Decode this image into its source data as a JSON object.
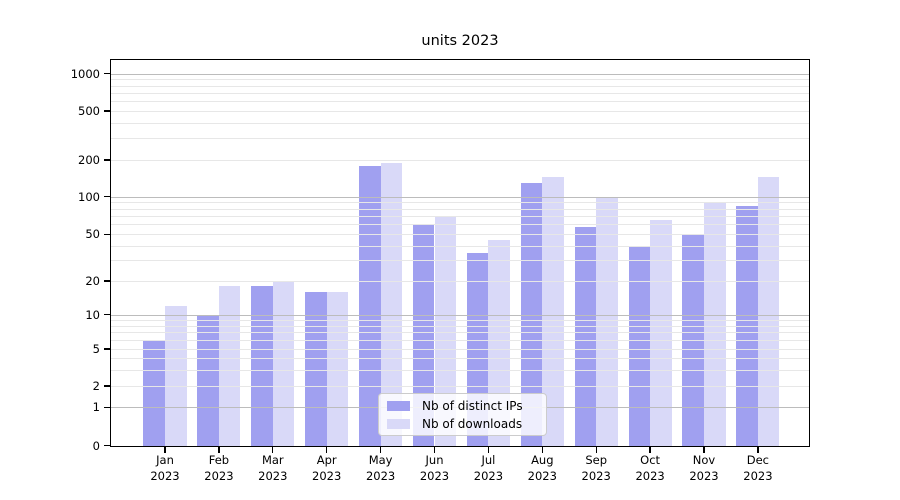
{
  "title": "units 2023",
  "legend": {
    "items": [
      {
        "label": "Nb of distinct IPs",
        "color": "#a0a0f0"
      },
      {
        "label": "Nb of downloads",
        "color": "#d9d9f8"
      }
    ]
  },
  "chart_data": {
    "type": "bar",
    "title": "units 2023",
    "categories": [
      "Jan",
      "Feb",
      "Mar",
      "Apr",
      "May",
      "Jun",
      "Jul",
      "Aug",
      "Sep",
      "Oct",
      "Nov",
      "Dec"
    ],
    "category_year": "2023",
    "series": [
      {
        "name": "Nb of distinct IPs",
        "color": "#a0a0f0",
        "values": [
          6,
          10,
          18,
          16,
          180,
          60,
          35,
          130,
          57,
          40,
          50,
          85
        ]
      },
      {
        "name": "Nb of downloads",
        "color": "#d9d9f8",
        "values": [
          12,
          18,
          20,
          16,
          190,
          70,
          45,
          145,
          100,
          65,
          90,
          145
        ]
      }
    ],
    "xlabel": "",
    "ylabel": "",
    "yscale": "symlog",
    "yticks": [
      0,
      1,
      2,
      5,
      10,
      20,
      50,
      100,
      200,
      500,
      1000
    ],
    "ytick_labels": [
      "0",
      "1",
      "2",
      "5",
      "10",
      "20",
      "50",
      "100",
      "200",
      "500",
      "1000"
    ],
    "ylim": [
      0,
      1300
    ],
    "grid": {
      "horizontal": true,
      "minor_color": "#e7e7e7",
      "major_color": "#bcbcbc",
      "above_bars": true
    },
    "legend_position": "lower center"
  }
}
